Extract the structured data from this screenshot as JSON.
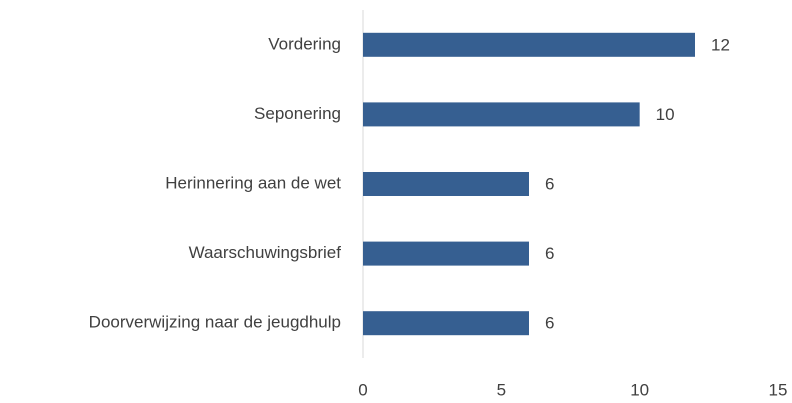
{
  "chart_data": {
    "type": "bar",
    "orientation": "horizontal",
    "categories": [
      "Vordering",
      "Seponering",
      "Herinnering aan de wet",
      "Waarschuwingsbrief",
      "Doorverwijzing naar de jeugdhulp"
    ],
    "values": [
      12,
      10,
      6,
      6,
      6
    ],
    "color": "#365f91",
    "xlim": [
      0,
      15
    ],
    "xticks": [
      0,
      5,
      10,
      15
    ],
    "grid": false,
    "data_labels": true
  }
}
